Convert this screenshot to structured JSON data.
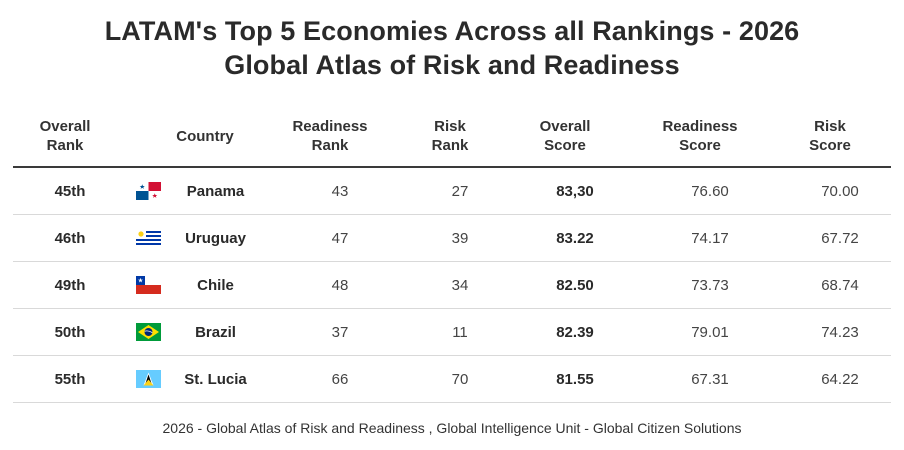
{
  "title_line1": "LATAM's Top 5 Economies Across all Rankings - 2026",
  "title_line2": "Global Atlas of Risk and Readiness",
  "headers": {
    "overall_rank": [
      "Overall",
      "Rank"
    ],
    "country": "Country",
    "readiness_rank": [
      "Readiness",
      "Rank"
    ],
    "risk_rank": [
      "Risk",
      "Rank"
    ],
    "overall_score": [
      "Overall",
      "Score"
    ],
    "readiness_score": [
      "Readiness",
      "Score"
    ],
    "risk_score": [
      "Risk",
      "Score"
    ]
  },
  "rows": [
    {
      "overall_rank": "45th",
      "country": "Panama",
      "flag": "panama-flag-icon",
      "readiness_rank": "43",
      "risk_rank": "27",
      "overall_score": "83,30",
      "readiness_score": "76.60",
      "risk_score": "70.00"
    },
    {
      "overall_rank": "46th",
      "country": "Uruguay",
      "flag": "uruguay-flag-icon",
      "readiness_rank": "47",
      "risk_rank": "39",
      "overall_score": "83.22",
      "readiness_score": "74.17",
      "risk_score": "67.72"
    },
    {
      "overall_rank": "49th",
      "country": "Chile",
      "flag": "chile-flag-icon",
      "readiness_rank": "48",
      "risk_rank": "34",
      "overall_score": "82.50",
      "readiness_score": "73.73",
      "risk_score": "68.74"
    },
    {
      "overall_rank": "50th",
      "country": "Brazil",
      "flag": "brazil-flag-icon",
      "readiness_rank": "37",
      "risk_rank": "11",
      "overall_score": "82.39",
      "readiness_score": "79.01",
      "risk_score": "74.23"
    },
    {
      "overall_rank": "55th",
      "country": "St. Lucia",
      "flag": "st-lucia-flag-icon",
      "readiness_rank": "66",
      "risk_rank": "70",
      "overall_score": "81.55",
      "readiness_score": "67.31",
      "risk_score": "64.22"
    }
  ],
  "footer": "2026 - Global Atlas of Risk and Readiness , Global Intelligence Unit - Global Citizen Solutions"
}
